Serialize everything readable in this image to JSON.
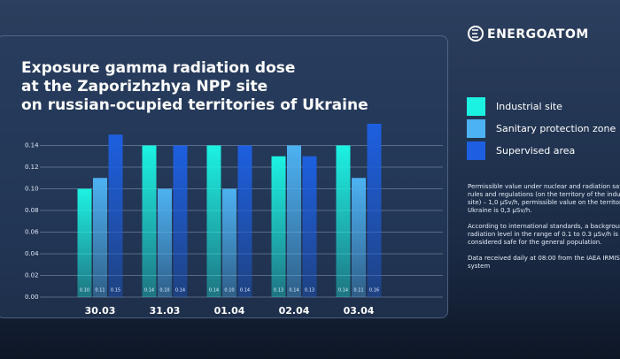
{
  "brand": "ENERGOATOM",
  "notes": [
    "Permissible value under nuclear and radiation safety rules and regulations (on the territory of the industrial site) – 1,0 μSv/h, permissible value on the territory of Ukraine is 0,3 μSv/h.",
    "According to international standards, a background radiation level in the range of 0.1 to 0.3 μSv/h is considered safe for the general population.",
    "Data received daily at 08:00 from the IAEA IRMIS system"
  ],
  "chart_data": {
    "type": "bar",
    "title": [
      "Exposure gamma radiation dose",
      "at the Zaporizhzhya NPP site",
      "on russian-ocupied territories of Ukraine"
    ],
    "categories": [
      "30.03",
      "31.03",
      "01.04",
      "02.04",
      "03.04"
    ],
    "series": [
      {
        "name": "Industrial site",
        "color": "#1cf2e2",
        "values": [
          0.1,
          0.14,
          0.14,
          0.13,
          0.14
        ],
        "value_labels": [
          "0.10",
          "0.14",
          "0.14",
          "0.13",
          "0.14"
        ]
      },
      {
        "name": "Sanitary protection zone",
        "color": "#4db2f2",
        "values": [
          0.11,
          0.1,
          0.1,
          0.14,
          0.11
        ],
        "value_labels": [
          "0.11",
          "0.10",
          "0.10",
          "0.14",
          "0.11"
        ]
      },
      {
        "name": "Supervised area",
        "color": "#1d5fe0",
        "values": [
          0.15,
          0.14,
          0.14,
          0.13,
          0.16
        ],
        "value_labels": [
          "0.15",
          "0.14",
          "0.14",
          "0.13",
          "0.16"
        ]
      }
    ],
    "ylim": [
      0,
      0.16
    ],
    "yticks": [
      {
        "value": 0,
        "label": "0.00"
      },
      {
        "value": 0.02,
        "label": "0.02"
      },
      {
        "value": 0.04,
        "label": "0.04"
      },
      {
        "value": 0.06,
        "label": "0.06"
      },
      {
        "value": 0.08,
        "label": "0.08"
      },
      {
        "value": 0.1,
        "label": "0.10"
      },
      {
        "value": 0.12,
        "label": "0.12"
      },
      {
        "value": 0.14,
        "label": "0.14"
      }
    ],
    "grid": true
  }
}
